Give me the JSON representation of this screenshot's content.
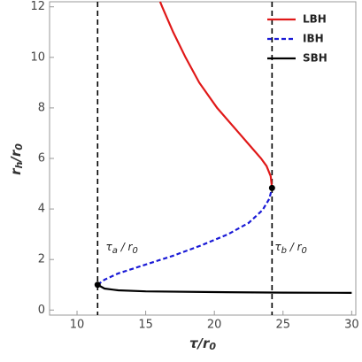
{
  "chart_data": {
    "type": "line",
    "xlabel": [
      "τ/r",
      "0"
    ],
    "ylabel": [
      "r",
      "h",
      "/r",
      "0"
    ],
    "xlim": [
      8,
      30.3
    ],
    "ylim": [
      -0.2,
      12.2
    ],
    "xticks": [
      10,
      15,
      20,
      25,
      30
    ],
    "yticks": [
      0,
      2,
      4,
      6,
      8,
      10,
      12
    ],
    "legend": "upper right",
    "series": [
      {
        "name": "LBH",
        "color": "#e01818",
        "dash": false,
        "x": [
          24.2,
          24.1,
          23.8,
          23.4,
          22.6,
          21.8,
          20.2,
          18.9,
          17.9,
          17.0,
          16.2,
          16.05
        ],
        "values": [
          4.83,
          5.3,
          5.7,
          6.0,
          6.5,
          7.0,
          8.0,
          9.0,
          10.0,
          11.0,
          12.0,
          12.2
        ]
      },
      {
        "name": "IBH",
        "color": "#1a1ad6",
        "dash": true,
        "x": [
          11.5,
          12,
          13,
          15,
          17,
          19,
          21,
          22.5,
          23.5,
          24,
          24.2
        ],
        "values": [
          1.0,
          1.2,
          1.45,
          1.8,
          2.15,
          2.55,
          3.0,
          3.45,
          3.95,
          4.4,
          4.83
        ]
      },
      {
        "name": "SBH",
        "color": "#000000",
        "dash": false,
        "x": [
          11.5,
          12,
          13,
          15,
          20,
          25,
          30
        ],
        "values": [
          1.0,
          0.85,
          0.78,
          0.74,
          0.71,
          0.69,
          0.68
        ]
      }
    ],
    "points": {
      "x": [
        11.5,
        24.2
      ],
      "values": [
        1.0,
        4.83
      ]
    },
    "vlines": [
      11.5,
      24.2
    ],
    "annotations": [
      {
        "parts": [
          "τ",
          "a",
          " / r",
          "0"
        ],
        "x": 11.9,
        "y": 2.5
      },
      {
        "parts": [
          "τ",
          "b",
          " / r",
          "0"
        ],
        "x": 24.2,
        "y": 2.5
      }
    ]
  }
}
